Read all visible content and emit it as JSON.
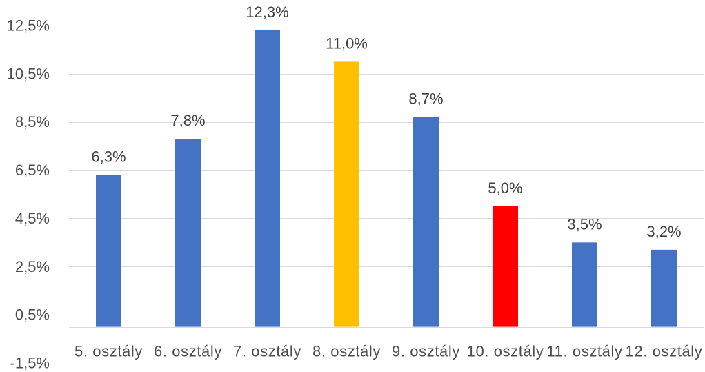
{
  "chart_data": {
    "type": "bar",
    "categories": [
      "5. osztály",
      "6. osztály",
      "7. osztály",
      "8. osztály",
      "9. osztály",
      "10. osztály",
      "11. osztály",
      "12. osztály"
    ],
    "values": [
      6.3,
      7.8,
      12.3,
      11.0,
      8.7,
      5.0,
      3.5,
      3.2
    ],
    "data_labels": [
      "6,3%",
      "7,8%",
      "12,3%",
      "11,0%",
      "8,7%",
      "5,0%",
      "3,5%",
      "3,2%"
    ],
    "bar_colors": [
      "#4472C4",
      "#4472C4",
      "#4472C4",
      "#FFC000",
      "#4472C4",
      "#FF0000",
      "#4472C4",
      "#4472C4"
    ],
    "y_ticks": [
      12.5,
      10.5,
      8.5,
      6.5,
      4.5,
      2.5,
      0.5,
      -1.5
    ],
    "y_tick_labels": [
      "12,5%",
      "10,5%",
      "8,5%",
      "6,5%",
      "4,5%",
      "2,5%",
      "0,5%",
      "-1,5%"
    ],
    "ylim": [
      -1.5,
      12.5
    ],
    "grid": true,
    "legend": false
  }
}
